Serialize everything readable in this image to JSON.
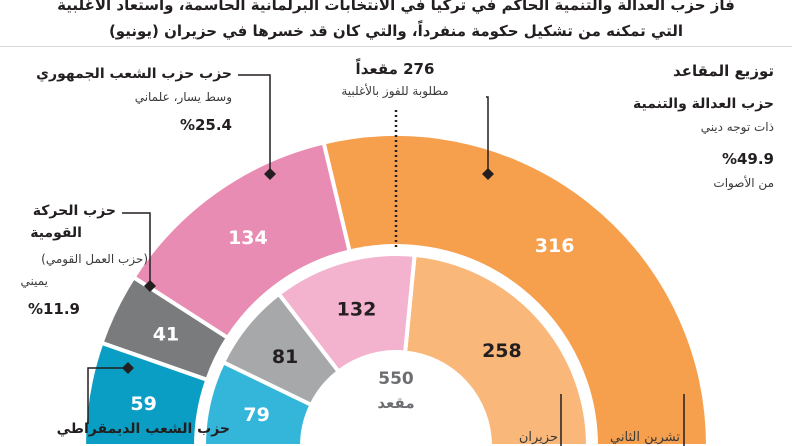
{
  "headline": {
    "line1": "فاز حزب العدالة والتنمية الحاكم في تركيا في الانتخابات البرلمانية الحاسمة، واستعاد الأغلبية",
    "line2": "التي تمكنه من تشكيل حكومة منفرداً، والتي كان قد خسرها في حزيران (يونيو)"
  },
  "seat_distribution_title": "توزيع المقاعد",
  "majority": {
    "value": "276 مقعداً",
    "note": "مطلوبة للفوز بالأغلبية"
  },
  "total": {
    "value": "550",
    "label": "مقعد"
  },
  "parties": {
    "akp": {
      "name": "حزب العدالة والتنمية",
      "desc": "ذات توجه ديني",
      "pct": "%49.9",
      "pct_note": "من الأصوات"
    },
    "chp": {
      "name": "حزب حزب الشعب الجمهوري",
      "desc": "وسط يسار، علماني",
      "pct": "%25.4"
    },
    "mhp": {
      "name_line1": "حزب الحركة",
      "name_line2": "القومية",
      "desc": "(حزب العمل القومي)",
      "orientation": "يميني",
      "pct": "%11.9"
    },
    "hdp": {
      "name": "حزب الشعب الديمقراطي"
    }
  },
  "bottom_labels": {
    "november": "تشرين الثاني",
    "june": "حزيران"
  },
  "chart_data": {
    "type": "pie",
    "title": "توزيع المقاعد",
    "total_seats": 550,
    "majority_threshold": 276,
    "categories": [
      "حزب العدالة والتنمية",
      "حزب الشعب الجمهوري",
      "حزب الحركة القومية",
      "حزب الشعب الديمقراطي"
    ],
    "series": [
      {
        "name": "تشرين الثاني",
        "values": [
          316,
          134,
          41,
          59
        ]
      },
      {
        "name": "حزيران",
        "values": [
          258,
          132,
          81,
          79
        ]
      }
    ],
    "colors": {
      "outer": [
        "#f6a04d",
        "#e98cb4",
        "#7a7b7d",
        "#0b9ec4"
      ],
      "inner": [
        "#f9b77a",
        "#f3b3cf",
        "#a7a8aa",
        "#33b6d9"
      ]
    }
  }
}
